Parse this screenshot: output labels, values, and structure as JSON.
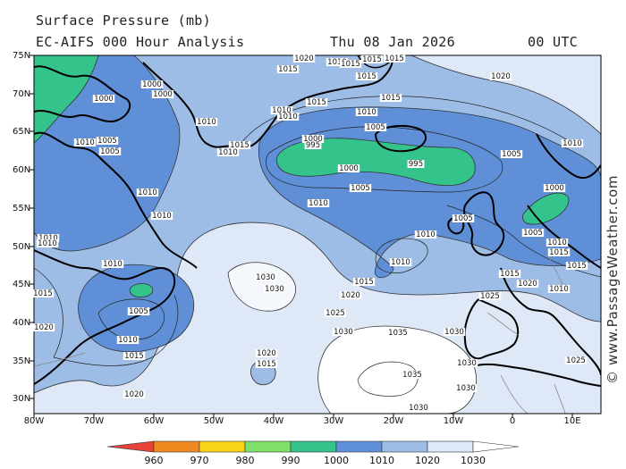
{
  "header": {
    "title": "Surface Pressure (mb)",
    "model": "EC-AIFS 000 Hour Analysis",
    "date": "Thu 08 Jan 2026",
    "time": "00 UTC"
  },
  "watermark": "© www.PassageWeather.com",
  "axes": {
    "lat_labels": [
      "75N",
      "70N",
      "65N",
      "60N",
      "55N",
      "50N",
      "45N",
      "40N",
      "35N",
      "30N"
    ],
    "lon_labels": [
      "80W",
      "70W",
      "60W",
      "50W",
      "40W",
      "30W",
      "20W",
      "10W",
      "0",
      "10E"
    ]
  },
  "colorbar": {
    "ticks": [
      "960",
      "970",
      "980",
      "990",
      "1000",
      "1010",
      "1020",
      "1030"
    ],
    "colors": [
      "#e8413a",
      "#f08a1e",
      "#f5d41a",
      "#7ee06a",
      "#34c48b",
      "#5f8fd6",
      "#9dbde6",
      "#dfe8f6",
      "#ffffff"
    ]
  },
  "isobar_labels": [
    {
      "t": "1020"
    },
    {
      "t": "1015"
    },
    {
      "t": "1015"
    },
    {
      "t": "1015"
    },
    {
      "t": "1010"
    },
    {
      "t": "1015"
    },
    {
      "t": "1015"
    },
    {
      "t": "1000"
    },
    {
      "t": "1000"
    },
    {
      "t": "1000"
    },
    {
      "t": "1010"
    },
    {
      "t": "1015"
    },
    {
      "t": "1010"
    },
    {
      "t": "1010"
    },
    {
      "t": "1015"
    },
    {
      "t": "1010"
    },
    {
      "t": "1005"
    },
    {
      "t": "1005"
    },
    {
      "t": "1000"
    },
    {
      "t": "995"
    },
    {
      "t": "1000"
    },
    {
      "t": "995"
    },
    {
      "t": "1005"
    },
    {
      "t": "1010"
    },
    {
      "t": "1020"
    },
    {
      "t": "1010"
    },
    {
      "t": "1005"
    },
    {
      "t": "1010"
    },
    {
      "t": "1010"
    },
    {
      "t": "1015"
    },
    {
      "t": "1010"
    },
    {
      "t": "1010"
    },
    {
      "t": "1005"
    },
    {
      "t": "1000"
    },
    {
      "t": "1005"
    },
    {
      "t": "1010"
    },
    {
      "t": "1015"
    },
    {
      "t": "1010"
    },
    {
      "t": "1010"
    },
    {
      "t": "1030"
    },
    {
      "t": "1030"
    },
    {
      "t": "1015"
    },
    {
      "t": "1020"
    },
    {
      "t": "1025"
    },
    {
      "t": "1025"
    },
    {
      "t": "1015"
    },
    {
      "t": "1020"
    },
    {
      "t": "1015"
    },
    {
      "t": "1010"
    },
    {
      "t": "1030"
    },
    {
      "t": "1030"
    },
    {
      "t": "1035"
    },
    {
      "t": "1035"
    },
    {
      "t": "1030"
    },
    {
      "t": "1030"
    },
    {
      "t": "1025"
    },
    {
      "t": "1020"
    },
    {
      "t": "1015"
    },
    {
      "t": "1020"
    },
    {
      "t": "1010"
    },
    {
      "t": "1015"
    },
    {
      "t": "1020"
    },
    {
      "t": "1030"
    },
    {
      "t": "1005"
    },
    {
      "t": "1010"
    },
    {
      "t": "1005"
    },
    {
      "t": "1015"
    },
    {
      "t": "1010"
    },
    {
      "t": "1010"
    }
  ]
}
